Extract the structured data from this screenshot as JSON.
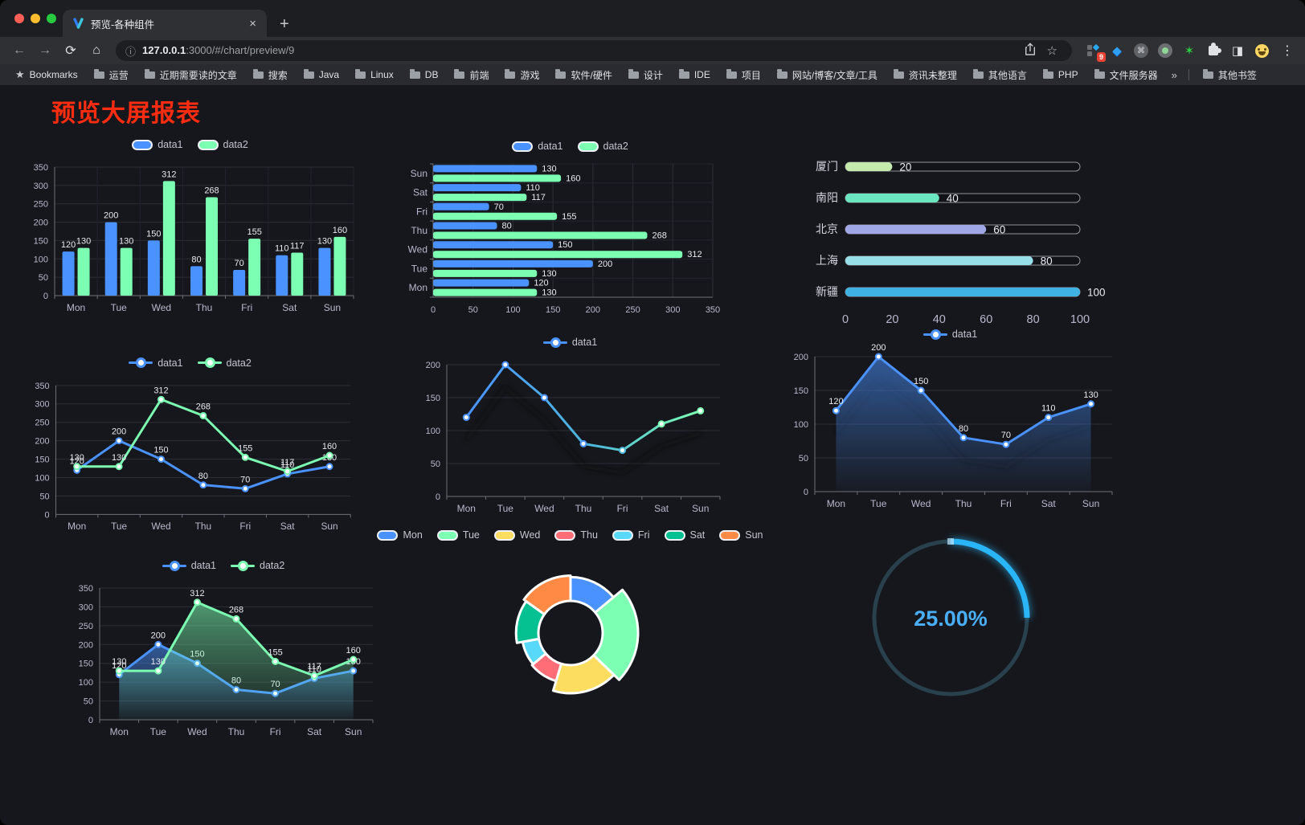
{
  "browser": {
    "traffic_lights": [
      "#ff5f57",
      "#febc2e",
      "#28c840"
    ],
    "tab": {
      "title": "预览-各种组件"
    },
    "url": {
      "host": "127.0.0.1",
      "rest": ":3000/#/chart/preview/9"
    },
    "glyphs": {
      "back": "←",
      "forward": "→",
      "reload": "⟳",
      "home": "⌂",
      "info": "ⓘ",
      "star": "☆",
      "menu": "⋮",
      "newtab": "+",
      "close_tab": "×",
      "overflow": "»",
      "bookmarks_star": "★",
      "command": "⌘",
      "split": "◨",
      "gem": "◆",
      "green_star": "✶"
    },
    "extensions": [
      {
        "name": "extensions-grid-icon",
        "badge": "9"
      },
      {
        "name": "gem-icon"
      },
      {
        "name": "command-circle-icon"
      },
      {
        "name": "record-circle-icon"
      },
      {
        "name": "green-star-icon"
      },
      {
        "name": "puzzle-icon"
      },
      {
        "name": "split-screen-icon"
      },
      {
        "name": "emoji-icon"
      }
    ],
    "bookmarks": {
      "leading_label": "Bookmarks",
      "folders": [
        "运营",
        "近期需要读的文章",
        "搜索",
        "Java",
        "Linux",
        "DB",
        "前端",
        "游戏",
        "软件/硬件",
        "设计",
        "IDE",
        "项目",
        "网站/博客/文章/工具",
        "资讯未整理",
        "其他语言",
        "PHP",
        "文件服务器"
      ],
      "trailing_label": "其他书签"
    }
  },
  "page": {
    "heading": "预览大屏报表",
    "heading_color": "#fe2c10",
    "background": "#16171c"
  },
  "chart_data": [
    {
      "id": "bar-vertical",
      "type": "bar",
      "legend": "pill",
      "labels": true,
      "categories": [
        "Mon",
        "Tue",
        "Wed",
        "Thu",
        "Fri",
        "Sat",
        "Sun"
      ],
      "series": [
        {
          "name": "data1",
          "color": "#4992ff",
          "values": [
            120,
            200,
            150,
            80,
            70,
            110,
            130
          ]
        },
        {
          "name": "data2",
          "color": "#7cffb2",
          "values": [
            130,
            130,
            312,
            268,
            155,
            117,
            160
          ]
        }
      ],
      "ylim": [
        0,
        350
      ],
      "ytick_step": 50
    },
    {
      "id": "bar-horizontal",
      "type": "hbar",
      "legend": "pill",
      "labels": true,
      "inverse": true,
      "categories": [
        "Mon",
        "Tue",
        "Wed",
        "Thu",
        "Fri",
        "Sat",
        "Sun"
      ],
      "series": [
        {
          "name": "data1",
          "color": "#4992ff",
          "values": [
            120,
            200,
            150,
            80,
            70,
            110,
            130
          ]
        },
        {
          "name": "data2",
          "color": "#7cffb2",
          "values": [
            130,
            130,
            312,
            268,
            155,
            117,
            160
          ]
        }
      ],
      "xlim": [
        0,
        350
      ],
      "xtick_step": 50
    },
    {
      "id": "progress-bars",
      "type": "progress",
      "max": 100,
      "ticks": [
        0,
        20,
        40,
        60,
        80,
        100
      ],
      "items": [
        {
          "label": "厦门",
          "value": 20,
          "color": "#c4ebad"
        },
        {
          "label": "南阳",
          "value": 40,
          "color": "#6be6c1"
        },
        {
          "label": "北京",
          "value": 60,
          "color": "#a0a7e6"
        },
        {
          "label": "上海",
          "value": 80,
          "color": "#96dee8"
        },
        {
          "label": "新疆",
          "value": 100,
          "color": "#3fb1e3"
        }
      ]
    },
    {
      "id": "line-two-series",
      "type": "line",
      "legend": "line",
      "labels": true,
      "categories": [
        "Mon",
        "Tue",
        "Wed",
        "Thu",
        "Fri",
        "Sat",
        "Sun"
      ],
      "series": [
        {
          "name": "data1",
          "color": "#4992ff",
          "values": [
            120,
            200,
            150,
            80,
            70,
            110,
            130
          ]
        },
        {
          "name": "data2",
          "color": "#7cffb2",
          "values": [
            130,
            130,
            312,
            268,
            155,
            117,
            160
          ]
        }
      ],
      "ylim": [
        0,
        350
      ],
      "ytick_step": 50
    },
    {
      "id": "line-gradient-shadow",
      "type": "line",
      "legend": "line",
      "labels": false,
      "shadow": true,
      "categories": [
        "Mon",
        "Tue",
        "Wed",
        "Thu",
        "Fri",
        "Sat",
        "Sun"
      ],
      "series": [
        {
          "name": "data1",
          "color": "#4992ff",
          "gradient": [
            "#4992ff",
            "#7cffb2"
          ],
          "values": [
            120,
            200,
            150,
            80,
            70,
            110,
            130
          ]
        }
      ],
      "ylim": [
        0,
        200
      ],
      "ytick_step": 50
    },
    {
      "id": "line-area",
      "type": "line",
      "legend": "line",
      "labels": true,
      "shadow": true,
      "categories": [
        "Mon",
        "Tue",
        "Wed",
        "Thu",
        "Fri",
        "Sat",
        "Sun"
      ],
      "series": [
        {
          "name": "data1",
          "color": "#4992ff",
          "area": true,
          "values": [
            120,
            200,
            150,
            80,
            70,
            110,
            130
          ]
        }
      ],
      "ylim": [
        0,
        200
      ],
      "ytick_step": 50
    },
    {
      "id": "line-area-two",
      "type": "line",
      "legend": "line",
      "labels": true,
      "categories": [
        "Mon",
        "Tue",
        "Wed",
        "Thu",
        "Fri",
        "Sat",
        "Sun"
      ],
      "series": [
        {
          "name": "data1",
          "color": "#4992ff",
          "area": true,
          "values": [
            120,
            200,
            150,
            80,
            70,
            110,
            130
          ]
        },
        {
          "name": "data2",
          "color": "#7cffb2",
          "area": true,
          "values": [
            130,
            130,
            312,
            268,
            155,
            117,
            160
          ]
        }
      ],
      "ylim": [
        0,
        350
      ],
      "ytick_step": 50
    },
    {
      "id": "rose-pie",
      "type": "rose",
      "legend": "pill",
      "items": [
        {
          "label": "Mon",
          "value": 120,
          "color": "#4992ff"
        },
        {
          "label": "Tue",
          "value": 200,
          "color": "#7cffb2"
        },
        {
          "label": "Wed",
          "value": 150,
          "color": "#fddd60"
        },
        {
          "label": "Thu",
          "value": 80,
          "color": "#ff6e76"
        },
        {
          "label": "Fri",
          "value": 70,
          "color": "#58d9f9"
        },
        {
          "label": "Sat",
          "value": 110,
          "color": "#05c091"
        },
        {
          "label": "Sun",
          "value": 130,
          "color": "#ff8a45"
        }
      ]
    },
    {
      "id": "gauge",
      "type": "gauge",
      "value": 25,
      "label": "25.00%",
      "color": "#2ab5f7",
      "text_color": "#49aef6",
      "track_color": "#29414d"
    }
  ]
}
